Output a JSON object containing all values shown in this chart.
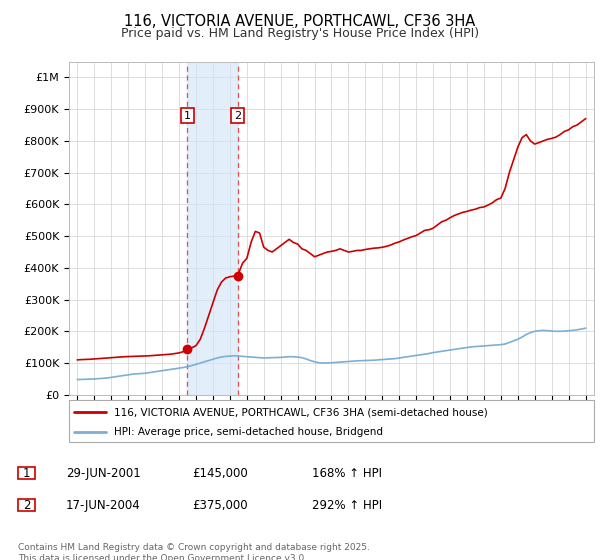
{
  "title": "116, VICTORIA AVENUE, PORTHCAWL, CF36 3HA",
  "subtitle": "Price paid vs. HM Land Registry's House Price Index (HPI)",
  "title_fontsize": 10.5,
  "subtitle_fontsize": 9,
  "ylim": [
    0,
    1050000
  ],
  "yticks": [
    0,
    100000,
    200000,
    300000,
    400000,
    500000,
    600000,
    700000,
    800000,
    900000,
    1000000
  ],
  "ytick_labels": [
    "£0",
    "£100K",
    "£200K",
    "£300K",
    "£400K",
    "£500K",
    "£600K",
    "£700K",
    "£800K",
    "£900K",
    "£1M"
  ],
  "background_color": "#ffffff",
  "grid_color": "#d8d8d8",
  "sale1_date": 2001.49,
  "sale1_price": 145000,
  "sale1_label": "1",
  "sale2_date": 2004.46,
  "sale2_price": 375000,
  "sale2_label": "2",
  "shade_color": "#d0e4f7",
  "shade_alpha": 0.6,
  "vline_color": "#e05050",
  "red_line_color": "#cc0000",
  "blue_line_color": "#7bafd4",
  "legend_label_red": "116, VICTORIA AVENUE, PORTHCAWL, CF36 3HA (semi-detached house)",
  "legend_label_blue": "HPI: Average price, semi-detached house, Bridgend",
  "footnote": "Contains HM Land Registry data © Crown copyright and database right 2025.\nThis data is licensed under the Open Government Licence v3.0.",
  "table_rows": [
    {
      "num": "1",
      "date": "29-JUN-2001",
      "price": "£145,000",
      "hpi": "168% ↑ HPI"
    },
    {
      "num": "2",
      "date": "17-JUN-2004",
      "price": "£375,000",
      "hpi": "292% ↑ HPI"
    }
  ],
  "hpi_x": [
    1995.0,
    1995.25,
    1995.5,
    1995.75,
    1996.0,
    1996.25,
    1996.5,
    1996.75,
    1997.0,
    1997.25,
    1997.5,
    1997.75,
    1998.0,
    1998.25,
    1998.5,
    1998.75,
    1999.0,
    1999.25,
    1999.5,
    1999.75,
    2000.0,
    2000.25,
    2000.5,
    2000.75,
    2001.0,
    2001.25,
    2001.5,
    2001.75,
    2002.0,
    2002.25,
    2002.5,
    2002.75,
    2003.0,
    2003.25,
    2003.5,
    2003.75,
    2004.0,
    2004.25,
    2004.5,
    2004.75,
    2005.0,
    2005.25,
    2005.5,
    2005.75,
    2006.0,
    2006.25,
    2006.5,
    2006.75,
    2007.0,
    2007.25,
    2007.5,
    2007.75,
    2008.0,
    2008.25,
    2008.5,
    2008.75,
    2009.0,
    2009.25,
    2009.5,
    2009.75,
    2010.0,
    2010.25,
    2010.5,
    2010.75,
    2011.0,
    2011.25,
    2011.5,
    2011.75,
    2012.0,
    2012.25,
    2012.5,
    2012.75,
    2013.0,
    2013.25,
    2013.5,
    2013.75,
    2014.0,
    2014.25,
    2014.5,
    2014.75,
    2015.0,
    2015.25,
    2015.5,
    2015.75,
    2016.0,
    2016.25,
    2016.5,
    2016.75,
    2017.0,
    2017.25,
    2017.5,
    2017.75,
    2018.0,
    2018.25,
    2018.5,
    2018.75,
    2019.0,
    2019.25,
    2019.5,
    2019.75,
    2020.0,
    2020.25,
    2020.5,
    2020.75,
    2021.0,
    2021.25,
    2021.5,
    2021.75,
    2022.0,
    2022.25,
    2022.5,
    2022.75,
    2023.0,
    2023.25,
    2023.5,
    2023.75,
    2024.0,
    2024.25,
    2024.5,
    2024.75,
    2025.0
  ],
  "hpi_y": [
    48000,
    48500,
    49000,
    49500,
    50000,
    51000,
    52000,
    53000,
    55000,
    57000,
    59000,
    61000,
    63000,
    65000,
    66000,
    67000,
    68000,
    70000,
    72000,
    74000,
    76000,
    78000,
    80000,
    82000,
    84000,
    86000,
    89000,
    92000,
    96000,
    100000,
    104000,
    108000,
    112000,
    116000,
    119000,
    121000,
    122000,
    123000,
    122000,
    121000,
    120000,
    119000,
    118000,
    117000,
    116000,
    116500,
    117000,
    117500,
    118000,
    119000,
    120000,
    120000,
    119000,
    117000,
    113000,
    108000,
    104000,
    101000,
    100000,
    100500,
    101000,
    102000,
    103000,
    104000,
    105000,
    106000,
    107000,
    107500,
    108000,
    108500,
    109000,
    110000,
    111000,
    112000,
    113000,
    114000,
    116000,
    118000,
    120000,
    122000,
    124000,
    126000,
    128000,
    130000,
    133000,
    135000,
    137000,
    139000,
    141000,
    143000,
    145000,
    147000,
    149000,
    151000,
    152000,
    153000,
    154000,
    155000,
    156000,
    157000,
    158000,
    160000,
    165000,
    170000,
    175000,
    182000,
    190000,
    196000,
    200000,
    202000,
    203000,
    202000,
    201000,
    200000,
    200000,
    201000,
    202000,
    203000,
    205000,
    207000,
    210000
  ],
  "red_x": [
    1995.0,
    1995.25,
    1995.5,
    1995.75,
    1996.0,
    1996.25,
    1996.5,
    1996.75,
    1997.0,
    1997.25,
    1997.5,
    1997.75,
    1998.0,
    1998.25,
    1998.5,
    1998.75,
    1999.0,
    1999.25,
    1999.5,
    1999.75,
    2000.0,
    2000.25,
    2000.5,
    2000.75,
    2001.0,
    2001.25,
    2001.49,
    2001.49,
    2001.75,
    2002.0,
    2002.25,
    2002.5,
    2002.75,
    2003.0,
    2003.25,
    2003.5,
    2003.75,
    2004.0,
    2004.25,
    2004.46,
    2004.46,
    2004.75,
    2005.0,
    2005.25,
    2005.5,
    2005.75,
    2006.0,
    2006.25,
    2006.5,
    2006.75,
    2007.0,
    2007.25,
    2007.5,
    2007.75,
    2008.0,
    2008.25,
    2008.5,
    2008.75,
    2009.0,
    2009.25,
    2009.5,
    2009.75,
    2010.0,
    2010.25,
    2010.5,
    2010.75,
    2011.0,
    2011.25,
    2011.5,
    2011.75,
    2012.0,
    2012.25,
    2012.5,
    2012.75,
    2013.0,
    2013.25,
    2013.5,
    2013.75,
    2014.0,
    2014.25,
    2014.5,
    2014.75,
    2015.0,
    2015.25,
    2015.5,
    2015.75,
    2016.0,
    2016.25,
    2016.5,
    2016.75,
    2017.0,
    2017.25,
    2017.5,
    2017.75,
    2018.0,
    2018.25,
    2018.5,
    2018.75,
    2019.0,
    2019.25,
    2019.5,
    2019.75,
    2020.0,
    2020.25,
    2020.5,
    2020.75,
    2021.0,
    2021.25,
    2021.5,
    2021.75,
    2022.0,
    2022.25,
    2022.5,
    2022.75,
    2023.0,
    2023.25,
    2023.5,
    2023.75,
    2024.0,
    2024.25,
    2024.5,
    2024.75,
    2025.0
  ],
  "red_y": [
    110000,
    111000,
    111500,
    112000,
    113000,
    114000,
    115000,
    116000,
    117000,
    118000,
    119000,
    120000,
    120500,
    121000,
    121500,
    122000,
    122500,
    123000,
    124000,
    125000,
    126000,
    127000,
    128000,
    130000,
    132000,
    136000,
    145000,
    145000,
    148000,
    155000,
    175000,
    210000,
    250000,
    290000,
    330000,
    355000,
    368000,
    372000,
    374000,
    375000,
    375000,
    415000,
    430000,
    480000,
    515000,
    510000,
    465000,
    455000,
    450000,
    460000,
    470000,
    480000,
    490000,
    480000,
    475000,
    460000,
    455000,
    445000,
    435000,
    440000,
    445000,
    450000,
    452000,
    455000,
    460000,
    455000,
    450000,
    452000,
    455000,
    455000,
    458000,
    460000,
    462000,
    463000,
    465000,
    468000,
    472000,
    478000,
    482000,
    488000,
    493000,
    498000,
    502000,
    510000,
    518000,
    520000,
    525000,
    535000,
    545000,
    550000,
    558000,
    565000,
    570000,
    575000,
    578000,
    582000,
    585000,
    590000,
    592000,
    598000,
    605000,
    615000,
    620000,
    650000,
    700000,
    740000,
    780000,
    810000,
    820000,
    800000,
    790000,
    795000,
    800000,
    805000,
    808000,
    812000,
    820000,
    830000,
    835000,
    845000,
    850000,
    860000,
    870000
  ]
}
